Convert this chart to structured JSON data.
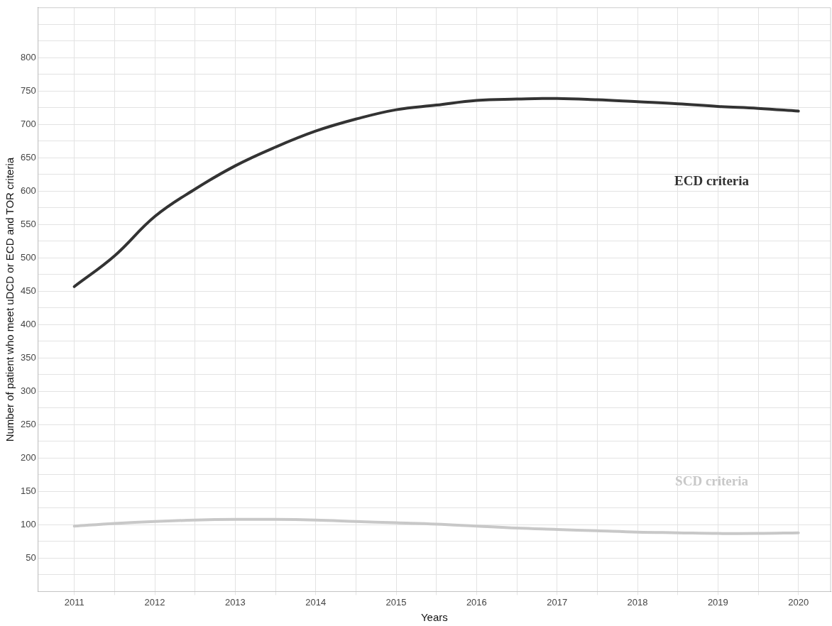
{
  "chart_data": {
    "type": "line",
    "xlabel": "Years",
    "ylabel": "Number of patient who meet uDCD or ECD and TOR criteria",
    "x": [
      2011,
      2011.5,
      2012,
      2012.5,
      2013,
      2013.5,
      2014,
      2014.5,
      2015,
      2015.5,
      2016,
      2016.5,
      2017,
      2017.5,
      2018,
      2018.5,
      2019,
      2019.5,
      2020
    ],
    "series": [
      {
        "name": "ECD criteria",
        "color": "#333333",
        "values": [
          457,
          503,
          562,
          603,
          638,
          666,
          690,
          708,
          722,
          729,
          736,
          738,
          739,
          737,
          734,
          731,
          727,
          724,
          720
        ]
      },
      {
        "name": "SCD criteria",
        "color": "#c8c8c8",
        "values": [
          98,
          102,
          105,
          107,
          108,
          108,
          107,
          105,
          103,
          101,
          98,
          95,
          93,
          91,
          89,
          88,
          87,
          87,
          88
        ]
      }
    ],
    "xlim": [
      2010.55,
      2020.4
    ],
    "xticks": [
      2011,
      {
        "value": 2011.5,
        "label": null
      },
      2012,
      {
        "value": 2012.5,
        "label": null
      },
      2013,
      {
        "value": 2013.5,
        "label": null
      },
      2014,
      {
        "value": 2014.5,
        "label": null
      },
      2015,
      {
        "value": 2015.5,
        "label": null
      },
      2016,
      {
        "value": 2016.5,
        "label": null
      },
      2017,
      {
        "value": 2017.5,
        "label": null
      },
      2018,
      {
        "value": 2018.5,
        "label": null
      },
      2019,
      {
        "value": 2019.5,
        "label": null
      },
      2020
    ],
    "ylim": [
      0,
      875
    ],
    "yticks": [
      {
        "value": 25,
        "label": null
      },
      50,
      {
        "value": 75,
        "label": null
      },
      100,
      {
        "value": 125,
        "label": null
      },
      150,
      {
        "value": 175,
        "label": null
      },
      200,
      {
        "value": 225,
        "label": null
      },
      250,
      {
        "value": 275,
        "label": null
      },
      300,
      {
        "value": 325,
        "label": null
      },
      350,
      {
        "value": 375,
        "label": null
      },
      400,
      {
        "value": 425,
        "label": null
      },
      450,
      {
        "value": 475,
        "label": null
      },
      500,
      {
        "value": 525,
        "label": null
      },
      550,
      {
        "value": 575,
        "label": null
      },
      600,
      {
        "value": 625,
        "label": null
      },
      650,
      {
        "value": 675,
        "label": null
      },
      700,
      {
        "value": 725,
        "label": null
      },
      750,
      {
        "value": 775,
        "label": null
      },
      800,
      {
        "value": 825,
        "label": null
      },
      {
        "value": 850,
        "label": null
      }
    ],
    "grid": true,
    "legend": false,
    "marker": "none",
    "line_style": "solid"
  }
}
